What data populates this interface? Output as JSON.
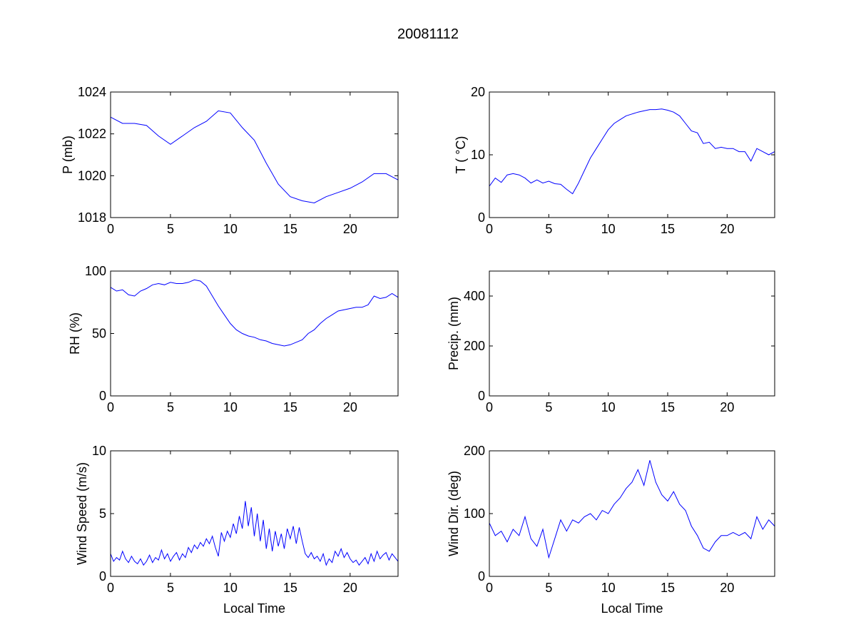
{
  "chart_data": {
    "title": "20081112",
    "colors": {
      "line": "#0000ff",
      "axes": "#000000"
    },
    "panels": [
      {
        "type": "line",
        "ylabel": "P (mb)",
        "xlabel": "",
        "xlim": [
          0,
          24
        ],
        "ylim": [
          1018,
          1024
        ],
        "xticks": [
          "0",
          "5",
          "10",
          "15",
          "20"
        ],
        "yticks": [
          "1018",
          "1020",
          "1022",
          "1024"
        ],
        "x_step": 1,
        "values": [
          1022.8,
          1022.5,
          1022.5,
          1022.4,
          1021.9,
          1021.5,
          1021.9,
          1022.3,
          1022.6,
          1023.1,
          1023.0,
          1022.3,
          1021.7,
          1020.6,
          1019.6,
          1019.0,
          1018.8,
          1018.7,
          1019.0,
          1019.2,
          1019.4,
          1019.7,
          1020.1,
          1020.1,
          1019.8
        ]
      },
      {
        "type": "line",
        "ylabel": "T ( °C)",
        "xlabel": "",
        "xlim": [
          0,
          24
        ],
        "ylim": [
          0,
          20
        ],
        "xticks": [
          "0",
          "5",
          "10",
          "15",
          "20"
        ],
        "yticks": [
          "0",
          "10",
          "20"
        ],
        "x_step": 0.5,
        "values": [
          5,
          6.3,
          5.6,
          6.8,
          7,
          6.8,
          6.3,
          5.5,
          6,
          5.5,
          5.8,
          5.4,
          5.3,
          4.5,
          3.8,
          5.5,
          7.5,
          9.5,
          11,
          12.5,
          14,
          15,
          15.6,
          16.2,
          16.5,
          16.8,
          17,
          17.2,
          17.2,
          17.3,
          17.1,
          16.8,
          16.2,
          15,
          13.8,
          13.5,
          11.8,
          12,
          11,
          11.2,
          11,
          11,
          10.5,
          10.5,
          9,
          11,
          10.5,
          10,
          10.5
        ]
      },
      {
        "type": "line",
        "ylabel": "RH (%)",
        "xlabel": "",
        "xlim": [
          0,
          24
        ],
        "ylim": [
          0,
          100
        ],
        "xticks": [
          "0",
          "5",
          "10",
          "15",
          "20"
        ],
        "yticks": [
          "0",
          "50",
          "100"
        ],
        "x_step": 0.5,
        "values": [
          87,
          84,
          85,
          81,
          80,
          84,
          86,
          89,
          90,
          89,
          91,
          90,
          90,
          91,
          93,
          92,
          88,
          80,
          72,
          65,
          58,
          53,
          50,
          48,
          47,
          45,
          44,
          42,
          41,
          40,
          41,
          43,
          45,
          50,
          53,
          58,
          62,
          65,
          68,
          69,
          70,
          71,
          71,
          73,
          80,
          78,
          79,
          82,
          79
        ]
      },
      {
        "type": "line",
        "ylabel": "Precip. (mm)",
        "xlabel": "",
        "xlim": [
          0,
          24
        ],
        "ylim": [
          0,
          500
        ],
        "xticks": [
          "0",
          "5",
          "10",
          "15",
          "20"
        ],
        "yticks": [
          "0",
          "200",
          "400"
        ],
        "x_step": 1,
        "values": []
      },
      {
        "type": "line",
        "ylabel": "Wind Speed (m/s)",
        "xlabel": "Local Time",
        "xlim": [
          0,
          24
        ],
        "ylim": [
          0,
          10
        ],
        "xticks": [
          "0",
          "5",
          "10",
          "15",
          "20"
        ],
        "yticks": [
          "0",
          "5",
          "10"
        ],
        "x_step": 0.25,
        "values": [
          1.8,
          1.2,
          1.5,
          1.3,
          2.0,
          1.4,
          1.1,
          1.6,
          1.2,
          1.0,
          1.4,
          0.9,
          1.2,
          1.7,
          1.1,
          1.5,
          1.3,
          2.1,
          1.4,
          1.8,
          1.2,
          1.6,
          1.9,
          1.3,
          1.8,
          1.5,
          2.3,
          1.9,
          2.5,
          2.2,
          2.7,
          2.4,
          3.0,
          2.6,
          3.2,
          2.3,
          1.6,
          3.5,
          2.8,
          3.6,
          3.1,
          4.2,
          3.4,
          4.8,
          3.8,
          6.0,
          4.0,
          5.5,
          3.2,
          5.0,
          2.8,
          4.5,
          2.2,
          3.8,
          2.0,
          3.6,
          2.4,
          3.4,
          2.2,
          3.8,
          3.0,
          4.0,
          2.6,
          3.9,
          2.8,
          1.8,
          1.5,
          1.9,
          1.4,
          1.6,
          1.2,
          1.8,
          0.9,
          1.4,
          1.1,
          2.0,
          1.6,
          2.2,
          1.5,
          1.9,
          1.4,
          1.1,
          1.3,
          0.9,
          1.2,
          1.5,
          1.0,
          1.8,
          1.2,
          2.0,
          1.4,
          1.7,
          1.9,
          1.3,
          1.8,
          1.5,
          1.2
        ]
      },
      {
        "type": "line",
        "ylabel": "Wind Dir. (deg)",
        "xlabel": "Local Time",
        "xlim": [
          0,
          24
        ],
        "ylim": [
          0,
          200
        ],
        "xticks": [
          "0",
          "5",
          "10",
          "15",
          "20"
        ],
        "yticks": [
          "0",
          "100",
          "200"
        ],
        "x_step": 0.5,
        "values": [
          85,
          65,
          72,
          55,
          75,
          65,
          95,
          60,
          48,
          75,
          30,
          60,
          90,
          72,
          90,
          85,
          95,
          100,
          90,
          105,
          100,
          115,
          125,
          140,
          150,
          170,
          145,
          185,
          150,
          130,
          120,
          135,
          115,
          105,
          80,
          65,
          45,
          40,
          55,
          65,
          65,
          70,
          65,
          70,
          60,
          95,
          75,
          90,
          80
        ]
      }
    ]
  }
}
